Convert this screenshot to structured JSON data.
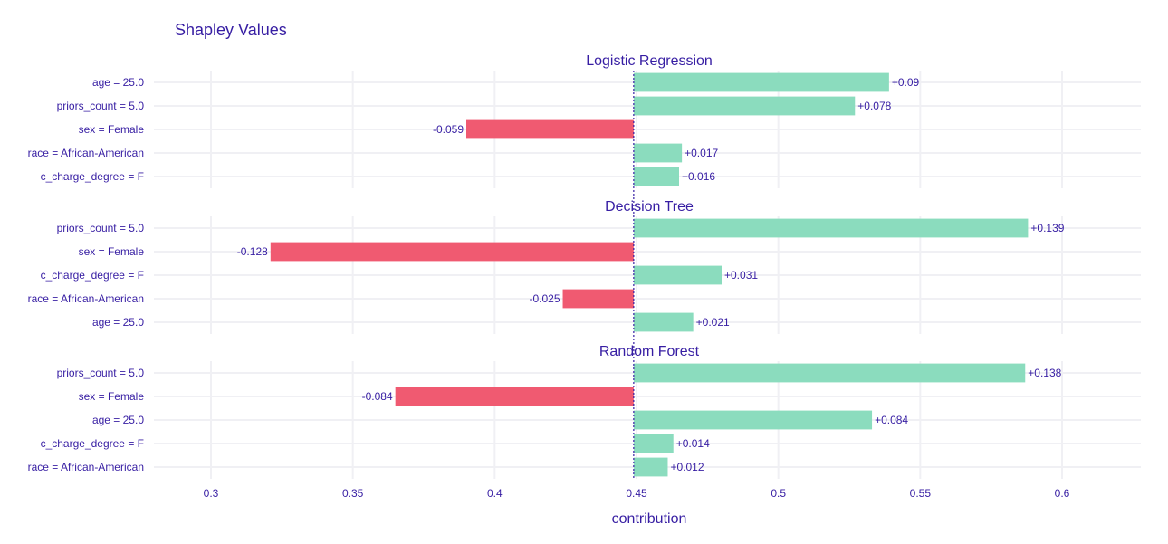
{
  "chart_data": {
    "type": "bar",
    "orientation": "horizontal",
    "title": "Shapley Values",
    "xlabel": "contribution",
    "xlim": [
      0.28,
      0.625
    ],
    "baseline": 0.449,
    "xticks": [
      0.3,
      0.35,
      0.4,
      0.45,
      0.5,
      0.55,
      0.6
    ],
    "xtick_labels": [
      "0.3",
      "0.35",
      "0.4",
      "0.45",
      "0.5",
      "0.55",
      "0.6"
    ],
    "grid": true,
    "colors": {
      "positive": "#8bdcbe",
      "negative": "#f05a71",
      "text": "#371ea3",
      "grid": "#f0f0f4",
      "baseline": "#371ea3"
    },
    "panels": [
      {
        "title": "Logistic Regression",
        "bars": [
          {
            "variable": "age = 25.0",
            "contribution": 0.09,
            "label": "+0.09"
          },
          {
            "variable": "priors_count = 5.0",
            "contribution": 0.078,
            "label": "+0.078"
          },
          {
            "variable": "sex = Female",
            "contribution": -0.059,
            "label": "-0.059"
          },
          {
            "variable": "race = African-American",
            "contribution": 0.017,
            "label": "+0.017"
          },
          {
            "variable": "c_charge_degree = F",
            "contribution": 0.016,
            "label": "+0.016"
          }
        ]
      },
      {
        "title": "Decision Tree",
        "bars": [
          {
            "variable": "priors_count = 5.0",
            "contribution": 0.139,
            "label": "+0.139"
          },
          {
            "variable": "sex = Female",
            "contribution": -0.128,
            "label": "-0.128"
          },
          {
            "variable": "c_charge_degree = F",
            "contribution": 0.031,
            "label": "+0.031"
          },
          {
            "variable": "race = African-American",
            "contribution": -0.025,
            "label": "-0.025"
          },
          {
            "variable": "age = 25.0",
            "contribution": 0.021,
            "label": "+0.021"
          }
        ]
      },
      {
        "title": "Random Forest",
        "bars": [
          {
            "variable": "priors_count = 5.0",
            "contribution": 0.138,
            "label": "+0.138"
          },
          {
            "variable": "sex = Female",
            "contribution": -0.084,
            "label": "-0.084"
          },
          {
            "variable": "age = 25.0",
            "contribution": 0.084,
            "label": "+0.084"
          },
          {
            "variable": "c_charge_degree = F",
            "contribution": 0.014,
            "label": "+0.014"
          },
          {
            "variable": "race = African-American",
            "contribution": 0.012,
            "label": "+0.012"
          }
        ]
      }
    ]
  }
}
